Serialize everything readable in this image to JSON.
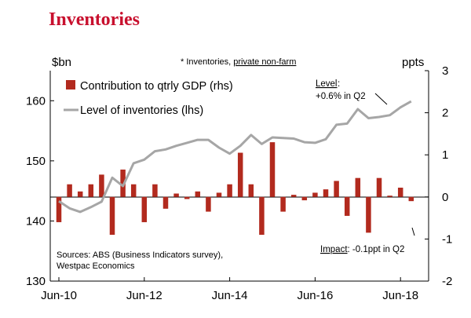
{
  "title": "Inventories",
  "colors": {
    "title": "#c8102e",
    "bars": "#b22a1e",
    "line": "#a6a6a6",
    "axis": "#000000"
  },
  "chart_data": {
    "type": "bar+line",
    "subtitle": "* Inventories, private non-farm",
    "subtitle_prefix": "* Inventories, ",
    "subtitle_link": "private non-farm",
    "ylabel_left": "$bn",
    "ylabel_right": "ppts",
    "ylim_left": [
      130,
      165
    ],
    "yticks_left": [
      130,
      140,
      150,
      160
    ],
    "ylim_right": [
      -2,
      3
    ],
    "yticks_right": [
      -2,
      -1,
      0,
      1,
      2,
      3
    ],
    "xtick_labels": [
      "Jun-10",
      "Jun-12",
      "Jun-14",
      "Jun-16",
      "Jun-18"
    ],
    "xtick_quarter_index": [
      0,
      8,
      16,
      24,
      32
    ],
    "legend_position": "top-left",
    "series": [
      {
        "name": "Contribution to qtrly GDP (rhs)",
        "type": "bar",
        "axis": "right",
        "values": [
          -0.6,
          0.3,
          0.13,
          0.3,
          0.53,
          -0.9,
          0.65,
          0.3,
          -0.6,
          0.3,
          -0.28,
          0.08,
          -0.05,
          0.13,
          -0.35,
          0.1,
          0.3,
          1.05,
          0.3,
          -0.9,
          1.3,
          -0.35,
          0.05,
          -0.08,
          0.1,
          0.18,
          0.38,
          -0.45,
          0.45,
          -0.85,
          0.45,
          0.03,
          0.22,
          -0.1
        ]
      },
      {
        "name": "Level of inventories (lhs)",
        "type": "line",
        "axis": "left",
        "values": [
          143.3,
          142.1,
          141.5,
          142.3,
          143.2,
          147.2,
          145.8,
          149.6,
          150.2,
          151.6,
          151.9,
          152.5,
          153.0,
          153.5,
          153.5,
          152.2,
          151.2,
          152.5,
          154.3,
          152.8,
          153.9,
          153.8,
          153.7,
          153.1,
          153.0,
          153.6,
          156.0,
          156.2,
          158.6,
          157.1,
          157.3,
          157.6,
          158.9,
          159.9
        ]
      }
    ],
    "annotations": {
      "level_label": "Level",
      "level_text": "+0.6% in Q2",
      "impact_label": "Impact",
      "impact_text": ": -0.1ppt in Q2",
      "sources_line1": "Sources: ABS (Business Indicators survey),",
      "sources_line2": "Westpac Economics"
    }
  }
}
